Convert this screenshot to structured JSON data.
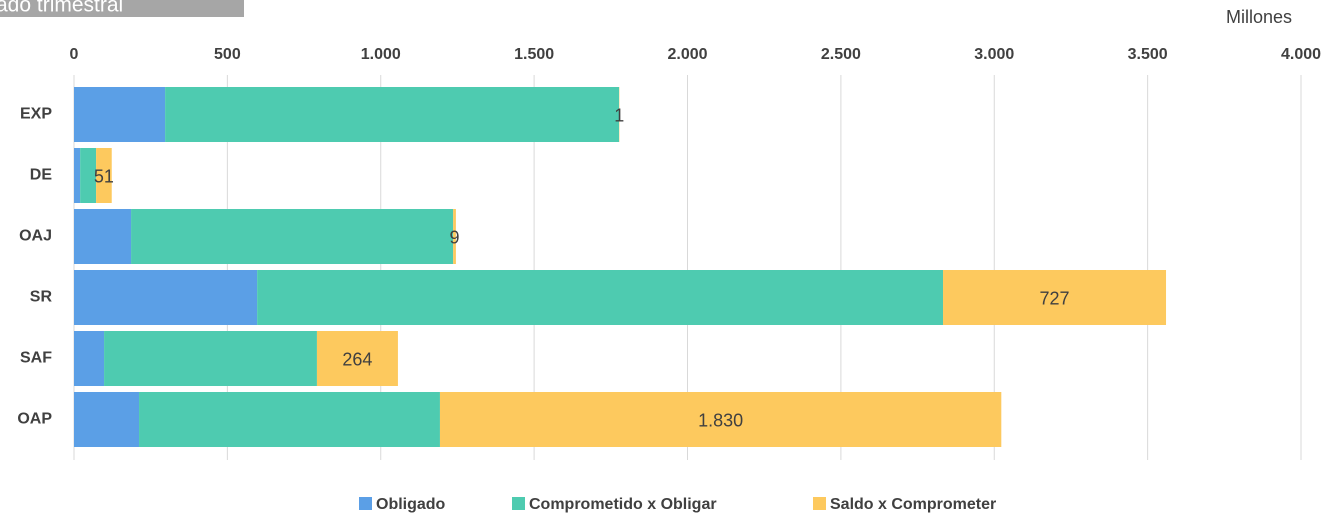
{
  "chart_data": {
    "type": "stacked_barh",
    "title": "ado trimestral",
    "x_unit": "Millones",
    "categories": [
      "EXP",
      "DE",
      "OAJ",
      "SR",
      "SAF",
      "OAP"
    ],
    "series": [
      {
        "name": "Obligado",
        "color": "#5b9fe6",
        "values": [
          297,
          20,
          186,
          597,
          98,
          212
        ]
      },
      {
        "name": "Comprometido x Obligar",
        "color": "#4ecbb0",
        "values": [
          1480,
          52,
          1050,
          2236,
          694,
          981
        ]
      },
      {
        "name": "Saldo x Comprometer",
        "color": "#fdc95e",
        "values": [
          1,
          51,
          9,
          727,
          264,
          1830
        ],
        "value_labels": [
          "1",
          "51",
          "9",
          "727",
          "264",
          "1.830"
        ]
      }
    ],
    "xlim": [
      0,
      4000
    ],
    "xticks": [
      0,
      500,
      {
        "value": 1000,
        "label": "1.000"
      },
      {
        "value": 1500,
        "label": "1.500"
      },
      {
        "value": 2000,
        "label": "2.000"
      },
      {
        "value": 2500,
        "label": "2.500"
      },
      {
        "value": 3000,
        "label": "3.000"
      },
      {
        "value": 3500,
        "label": "3.500"
      },
      {
        "value": 4000,
        "label": "4.000"
      }
    ],
    "grid": true,
    "legend": "bottom"
  }
}
